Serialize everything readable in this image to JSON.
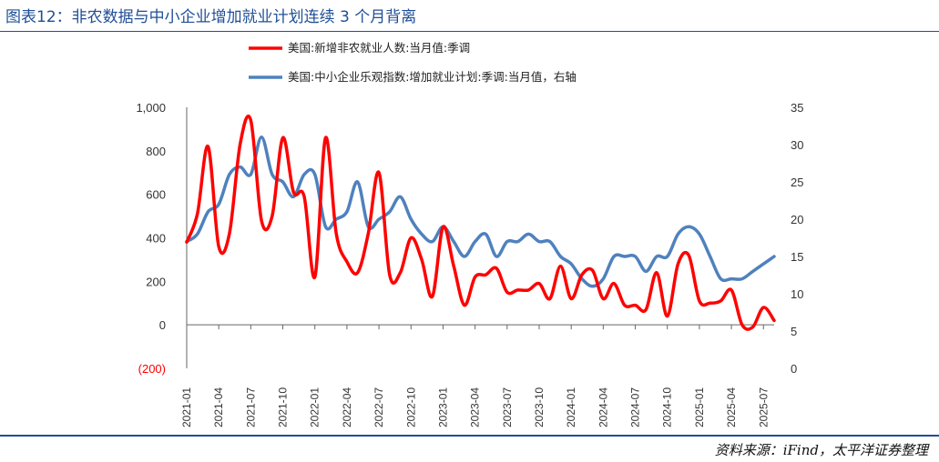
{
  "figure": {
    "title": "图表12：非农数据与中小企业增加就业计划连续 3 个月背离",
    "source": "资料来源：iFind，太平洋证券整理"
  },
  "chart_data": {
    "type": "line",
    "title": "",
    "xlabel": "",
    "ylabel": "",
    "y_left": {
      "min": -200,
      "max": 1000,
      "ticks": [
        -200,
        0,
        200,
        400,
        600,
        800,
        1000
      ],
      "tick_labels": [
        "(200)",
        "0",
        "200",
        "400",
        "600",
        "800",
        "1,000"
      ]
    },
    "y_right": {
      "min": 0,
      "max": 35,
      "ticks": [
        0,
        5,
        10,
        15,
        20,
        25,
        30,
        35
      ]
    },
    "x_tick_labels": [
      "2021-01",
      "2021-04",
      "2021-07",
      "2021-10",
      "2022-01",
      "2022-04",
      "2022-07",
      "2022-10",
      "2023-01",
      "2023-04",
      "2023-07",
      "2023-10",
      "2024-01",
      "2024-04",
      "2024-07",
      "2024-10",
      "2025-01",
      "2025-04",
      "2025-07"
    ],
    "legend_position": "top-center",
    "grid": false,
    "series": [
      {
        "name": "美国:新增非农就业人数:当月值:季调",
        "axis": "left",
        "color": "#ff0000",
        "x": [
          "2021-01",
          "2021-02",
          "2021-03",
          "2021-04",
          "2021-05",
          "2021-06",
          "2021-07",
          "2021-08",
          "2021-09",
          "2021-10",
          "2021-11",
          "2021-12",
          "2022-01",
          "2022-02",
          "2022-03",
          "2022-04",
          "2022-05",
          "2022-06",
          "2022-07",
          "2022-08",
          "2022-09",
          "2022-10",
          "2022-11",
          "2022-12",
          "2023-01",
          "2023-02",
          "2023-03",
          "2023-04",
          "2023-05",
          "2023-06",
          "2023-07",
          "2023-08",
          "2023-09",
          "2023-10",
          "2023-11",
          "2023-12",
          "2024-01",
          "2024-02",
          "2024-03",
          "2024-04",
          "2024-05",
          "2024-06",
          "2024-07",
          "2024-08",
          "2024-09",
          "2024-10",
          "2024-11",
          "2024-12",
          "2025-01",
          "2025-02",
          "2025-03",
          "2025-04",
          "2025-05",
          "2025-06",
          "2025-07",
          "2025-08"
        ],
        "values": [
          380,
          510,
          820,
          360,
          420,
          830,
          940,
          480,
          500,
          860,
          610,
          590,
          220,
          860,
          420,
          290,
          240,
          420,
          700,
          230,
          240,
          400,
          300,
          130,
          450,
          270,
          90,
          220,
          230,
          260,
          150,
          160,
          160,
          190,
          120,
          270,
          120,
          230,
          250,
          120,
          190,
          90,
          90,
          70,
          240,
          40,
          280,
          320,
          110,
          100,
          110,
          160,
          0,
          -10,
          80,
          20
        ]
      },
      {
        "name": "美国:中小企业乐观指数:增加就业计划:季调:当月值，右轴",
        "axis": "right",
        "color": "#4f81bd",
        "x": [
          "2021-01",
          "2021-02",
          "2021-03",
          "2021-04",
          "2021-05",
          "2021-06",
          "2021-07",
          "2021-08",
          "2021-09",
          "2021-10",
          "2021-11",
          "2021-12",
          "2022-01",
          "2022-02",
          "2022-03",
          "2022-04",
          "2022-05",
          "2022-06",
          "2022-07",
          "2022-08",
          "2022-09",
          "2022-10",
          "2022-11",
          "2022-12",
          "2023-01",
          "2023-02",
          "2023-03",
          "2023-04",
          "2023-05",
          "2023-06",
          "2023-07",
          "2023-08",
          "2023-09",
          "2023-10",
          "2023-11",
          "2023-12",
          "2024-01",
          "2024-02",
          "2024-03",
          "2024-04",
          "2024-05",
          "2024-06",
          "2024-07",
          "2024-08",
          "2024-09",
          "2024-10",
          "2024-11",
          "2024-12",
          "2025-01",
          "2025-02",
          "2025-03",
          "2025-04",
          "2025-05",
          "2025-06",
          "2025-07",
          "2025-08"
        ],
        "values": [
          17,
          18,
          21,
          22,
          26,
          27,
          26,
          31,
          26,
          25,
          23,
          26,
          26,
          19,
          20,
          21,
          25,
          19,
          20,
          21,
          23,
          20,
          18,
          17,
          19,
          17,
          15,
          17,
          18,
          15,
          17,
          17,
          18,
          17,
          17,
          15,
          14,
          12,
          11,
          12,
          15,
          15,
          15,
          13,
          15,
          15,
          18,
          19,
          18,
          15,
          12,
          12,
          12,
          13,
          14,
          15
        ]
      }
    ]
  }
}
